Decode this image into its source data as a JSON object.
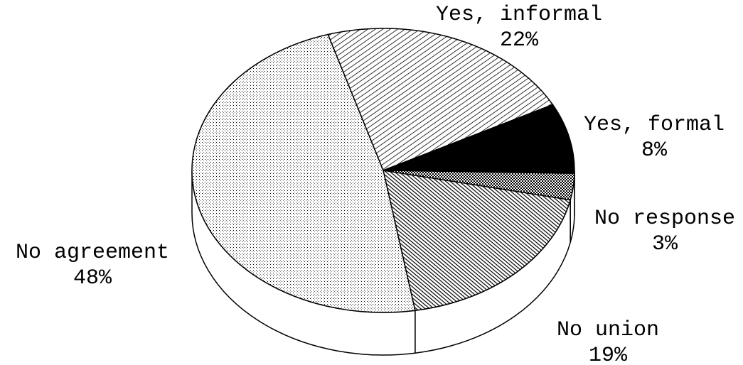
{
  "chart_data": {
    "type": "pie",
    "categories": [
      "Yes, informal",
      "Yes, formal",
      "No response",
      "No union",
      "No agreement"
    ],
    "values": [
      22,
      8,
      3,
      19,
      48
    ],
    "value_labels": [
      "22%",
      "8%",
      "3%",
      "19%",
      "48%"
    ]
  }
}
